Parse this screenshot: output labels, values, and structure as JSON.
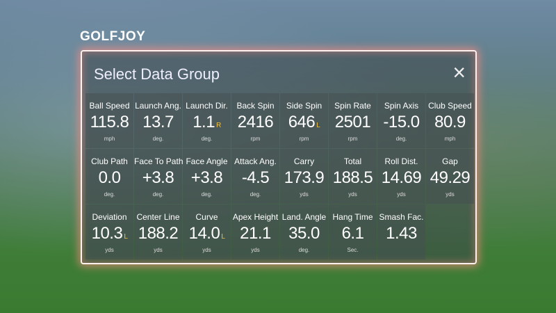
{
  "logo": "GOLFJOY",
  "dialog": {
    "title": "Select Data Group",
    "close": "×",
    "tiles": [
      {
        "label": "Ball Speed",
        "value": "115.8",
        "unit": "mph"
      },
      {
        "label": "Launch Ang.",
        "value": "13.7",
        "unit": "deg."
      },
      {
        "label": "Launch Dir.",
        "value": "1.1",
        "suffix": "R",
        "unit": "deg."
      },
      {
        "label": "Back Spin",
        "value": "2416",
        "unit": "rpm"
      },
      {
        "label": "Side Spin",
        "value": "646",
        "suffix": "L",
        "unit": "rpm"
      },
      {
        "label": "Spin Rate",
        "value": "2501",
        "unit": "rpm"
      },
      {
        "label": "Spin Axis",
        "value": "-15.0",
        "unit": "deg."
      },
      {
        "label": "Club Speed",
        "value": "80.9",
        "unit": "mph"
      },
      {
        "label": "Club Path",
        "value": "0.0",
        "unit": "deg."
      },
      {
        "label": "Face To Path",
        "value": "+3.8",
        "unit": "deg."
      },
      {
        "label": "Face Angle",
        "value": "+3.8",
        "unit": "deg."
      },
      {
        "label": "Attack Ang.",
        "value": "-4.5",
        "unit": "deg."
      },
      {
        "label": "Carry",
        "value": "173.9",
        "unit": "yds"
      },
      {
        "label": "Total",
        "value": "188.5",
        "unit": "yds"
      },
      {
        "label": "Roll Dist.",
        "value": "14.69",
        "unit": "yds"
      },
      {
        "label": "Gap",
        "value": "49.29",
        "unit": "yds"
      },
      {
        "label": "Deviation",
        "value": "10.3",
        "suffix": "L",
        "unit": "yds"
      },
      {
        "label": "Center Line",
        "value": "188.2",
        "unit": "yds"
      },
      {
        "label": "Curve",
        "value": "14.0",
        "suffix": "L",
        "unit": "yds"
      },
      {
        "label": "Apex Height",
        "value": "21.1",
        "unit": "yds"
      },
      {
        "label": "Land. Angle",
        "value": "35.0",
        "unit": "deg."
      },
      {
        "label": "Hang Time",
        "value": "6.1",
        "unit": "Sec."
      },
      {
        "label": "Smash Fac.",
        "value": "1.43"
      }
    ]
  }
}
